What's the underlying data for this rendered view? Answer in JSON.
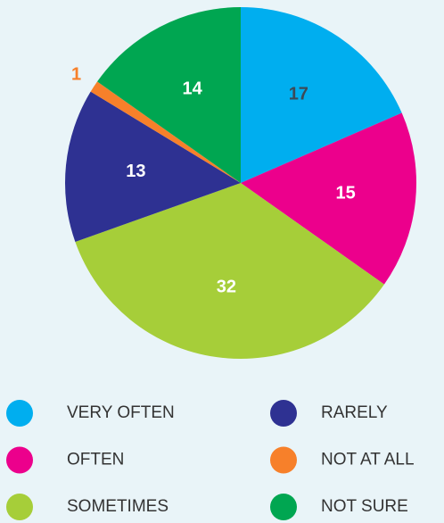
{
  "chart_data": {
    "type": "pie",
    "categories": [
      "VERY OFTEN",
      "OFTEN",
      "SOMETIMES",
      "RARELY",
      "NOT AT ALL",
      "NOT SURE"
    ],
    "values": [
      17,
      15,
      32,
      13,
      1,
      14
    ],
    "colors": [
      "#00aeef",
      "#ec008c",
      "#a6ce39",
      "#2e3192",
      "#f7802a",
      "#00a651"
    ],
    "label_colors": [
      "#3d4a57",
      "#ffffff",
      "#ffffff",
      "#ffffff",
      "#f7802a",
      "#ffffff"
    ]
  }
}
